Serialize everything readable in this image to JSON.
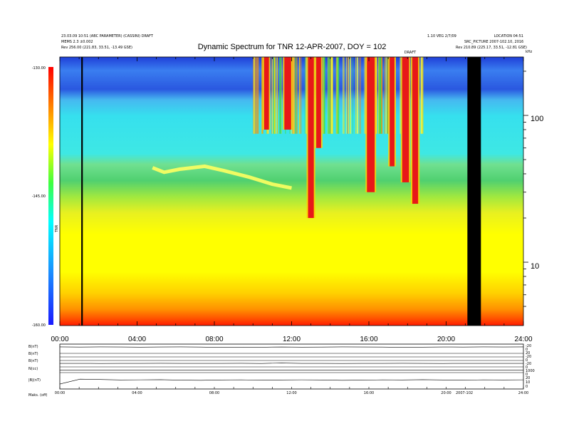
{
  "chart_data": {
    "type": "heatmap",
    "title": "Dynamic Spectrum for TNR 12-APR-2007, DOY = 102",
    "header_left": [
      "23.03.09 10:51 (ABC PARAMETER) (CASSINI) DRAFT",
      "MEMS 2.3 ±0.002",
      "Rev  256.00 (221.83, 33.51, -13.49 GSE)"
    ],
    "header_right": [
      "1.10 VEG 2/7/09",
      "LOCATION 04:51",
      "SRC_PICTURE 2007-102.10, 2016",
      "Rev  210.89 (225.17, 33.51, -12.81 GSE)"
    ],
    "top_tag": "DRAFT",
    "y_unit": "kHz",
    "y_ticks_right": [
      "100",
      "10"
    ],
    "colorbar": {
      "label": "TNR",
      "ticks": [
        "-130.00",
        "-145.00",
        "-160.00"
      ],
      "range": [
        -160,
        -130
      ]
    },
    "x_ticks": [
      "00:00",
      "04:00",
      "08:00",
      "12:00",
      "16:00",
      "20:00",
      "24:00"
    ],
    "x_range_hours": [
      0,
      24
    ],
    "freq_range_khz": [
      3.7,
      250
    ],
    "data_gaps_hours": [
      [
        21.1,
        21.8
      ]
    ],
    "vertical_marker_hour": 1.15,
    "bursts": [
      {
        "hour": 10.7,
        "width_h": 0.25,
        "fmin": 80,
        "fmax": 250
      },
      {
        "hour": 11.8,
        "width_h": 0.35,
        "fmin": 80,
        "fmax": 250
      },
      {
        "hour": 13.0,
        "width_h": 0.3,
        "fmin": 20,
        "fmax": 250
      },
      {
        "hour": 13.4,
        "width_h": 0.25,
        "fmin": 60,
        "fmax": 250
      },
      {
        "hour": 16.1,
        "width_h": 0.4,
        "fmin": 30,
        "fmax": 250
      },
      {
        "hour": 17.2,
        "width_h": 0.25,
        "fmin": 45,
        "fmax": 250
      },
      {
        "hour": 17.9,
        "width_h": 0.35,
        "fmin": 35,
        "fmax": 250
      },
      {
        "hour": 18.4,
        "width_h": 0.3,
        "fmin": 25,
        "fmax": 250
      }
    ],
    "emission_band": [
      [
        4.8,
        44
      ],
      [
        5.4,
        41
      ],
      [
        6.2,
        43
      ],
      [
        7.5,
        45
      ],
      [
        8.5,
        42
      ],
      [
        9.8,
        38
      ],
      [
        11.0,
        34
      ],
      [
        12.0,
        32
      ]
    ],
    "panels": [
      {
        "label": "B(nT)",
        "right": [
          "-20",
          "0",
          "20"
        ],
        "values": [
          0.3,
          0.32,
          0.3,
          0.31,
          0.33,
          0.31,
          0.3,
          0.32,
          0.36,
          0.33,
          0.34,
          0.31,
          0.33,
          0.32,
          0.3,
          0.31,
          0.32,
          0.35,
          0.33,
          0.31,
          0.32,
          0.3,
          0.31,
          0.3
        ]
      },
      {
        "label": "B(nT)",
        "right": [
          "-20",
          "0"
        ],
        "values": [
          0.5,
          0.5,
          0.5,
          0.5,
          0.5,
          0.5,
          0.5,
          0.5,
          0.5,
          0.5,
          0.5,
          0.5,
          0.5,
          0.5,
          0.5,
          0.5,
          0.5,
          0.5,
          0.5,
          0.5,
          0.5,
          0.5,
          0.5,
          0.5
        ]
      },
      {
        "label": "B(nT)",
        "right": [
          "-20",
          "0"
        ],
        "values": [
          0.45,
          0.45,
          0.46,
          0.45,
          0.45,
          0.44,
          0.45,
          0.45,
          0.45,
          0.44,
          0.46,
          0.4,
          0.45,
          0.45,
          0.46,
          0.45,
          0.45,
          0.44,
          0.45,
          0.46,
          0.45,
          0.45,
          0.45,
          0.45
        ]
      },
      {
        "label": "N(cc)",
        "right": [
          "1000",
          "0"
        ],
        "values": [
          0.55,
          0.55,
          0.56,
          0.55,
          0.55,
          0.55,
          0.55,
          0.55,
          0.55,
          0.55,
          0.55,
          0.55,
          0.55,
          0.55,
          0.55,
          0.55,
          0.55,
          0.55,
          0.55,
          0.55,
          0.55,
          0.55,
          0.55,
          0.55
        ]
      },
      {
        "label": "|B|(nT)",
        "right": [
          "20",
          "10",
          "0"
        ],
        "values": [
          0.7,
          0.4,
          0.42,
          0.45,
          0.44,
          0.43,
          0.46,
          0.47,
          0.45,
          0.44,
          0.46,
          0.45,
          0.44,
          0.45,
          0.47,
          0.46,
          0.44,
          0.45,
          0.43,
          0.45,
          0.46,
          0.44,
          0.45,
          0.44
        ]
      }
    ],
    "bottom_x_ticks": [
      "00:00",
      "04:00",
      "08:00",
      "12:00",
      "16:00",
      "20:00",
      "24:00"
    ],
    "bottom_label": "Maks. (off)",
    "bottom_right": "2007-102"
  }
}
